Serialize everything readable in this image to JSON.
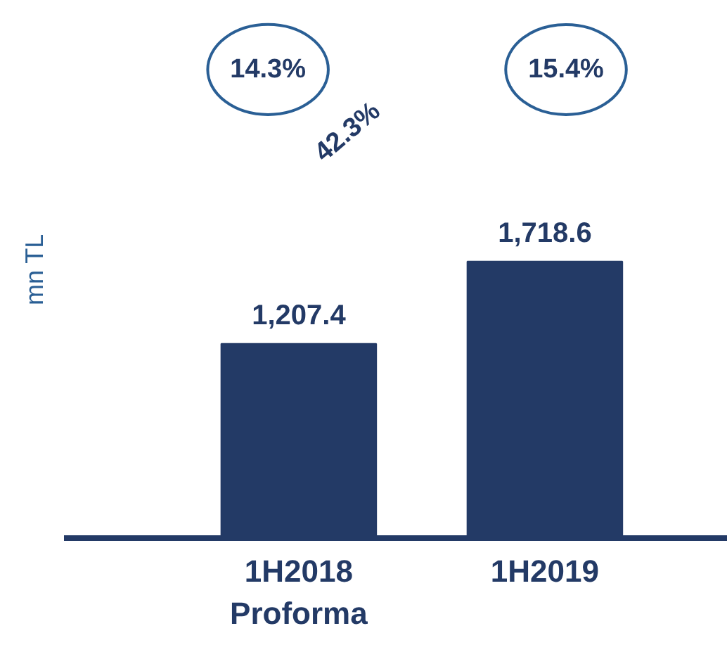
{
  "chart_data": {
    "type": "bar",
    "categories": [
      "1H2018\nProforma",
      "1H2019"
    ],
    "values": [
      1207.4,
      1718.6
    ],
    "value_labels": [
      "1,207.4",
      "1,718.6"
    ],
    "color": "#233a66",
    "ylabel": "mn TL",
    "tick_labels": "x",
    "annotations": [
      "14.3%",
      "15.4%",
      "42.3%"
    ]
  }
}
